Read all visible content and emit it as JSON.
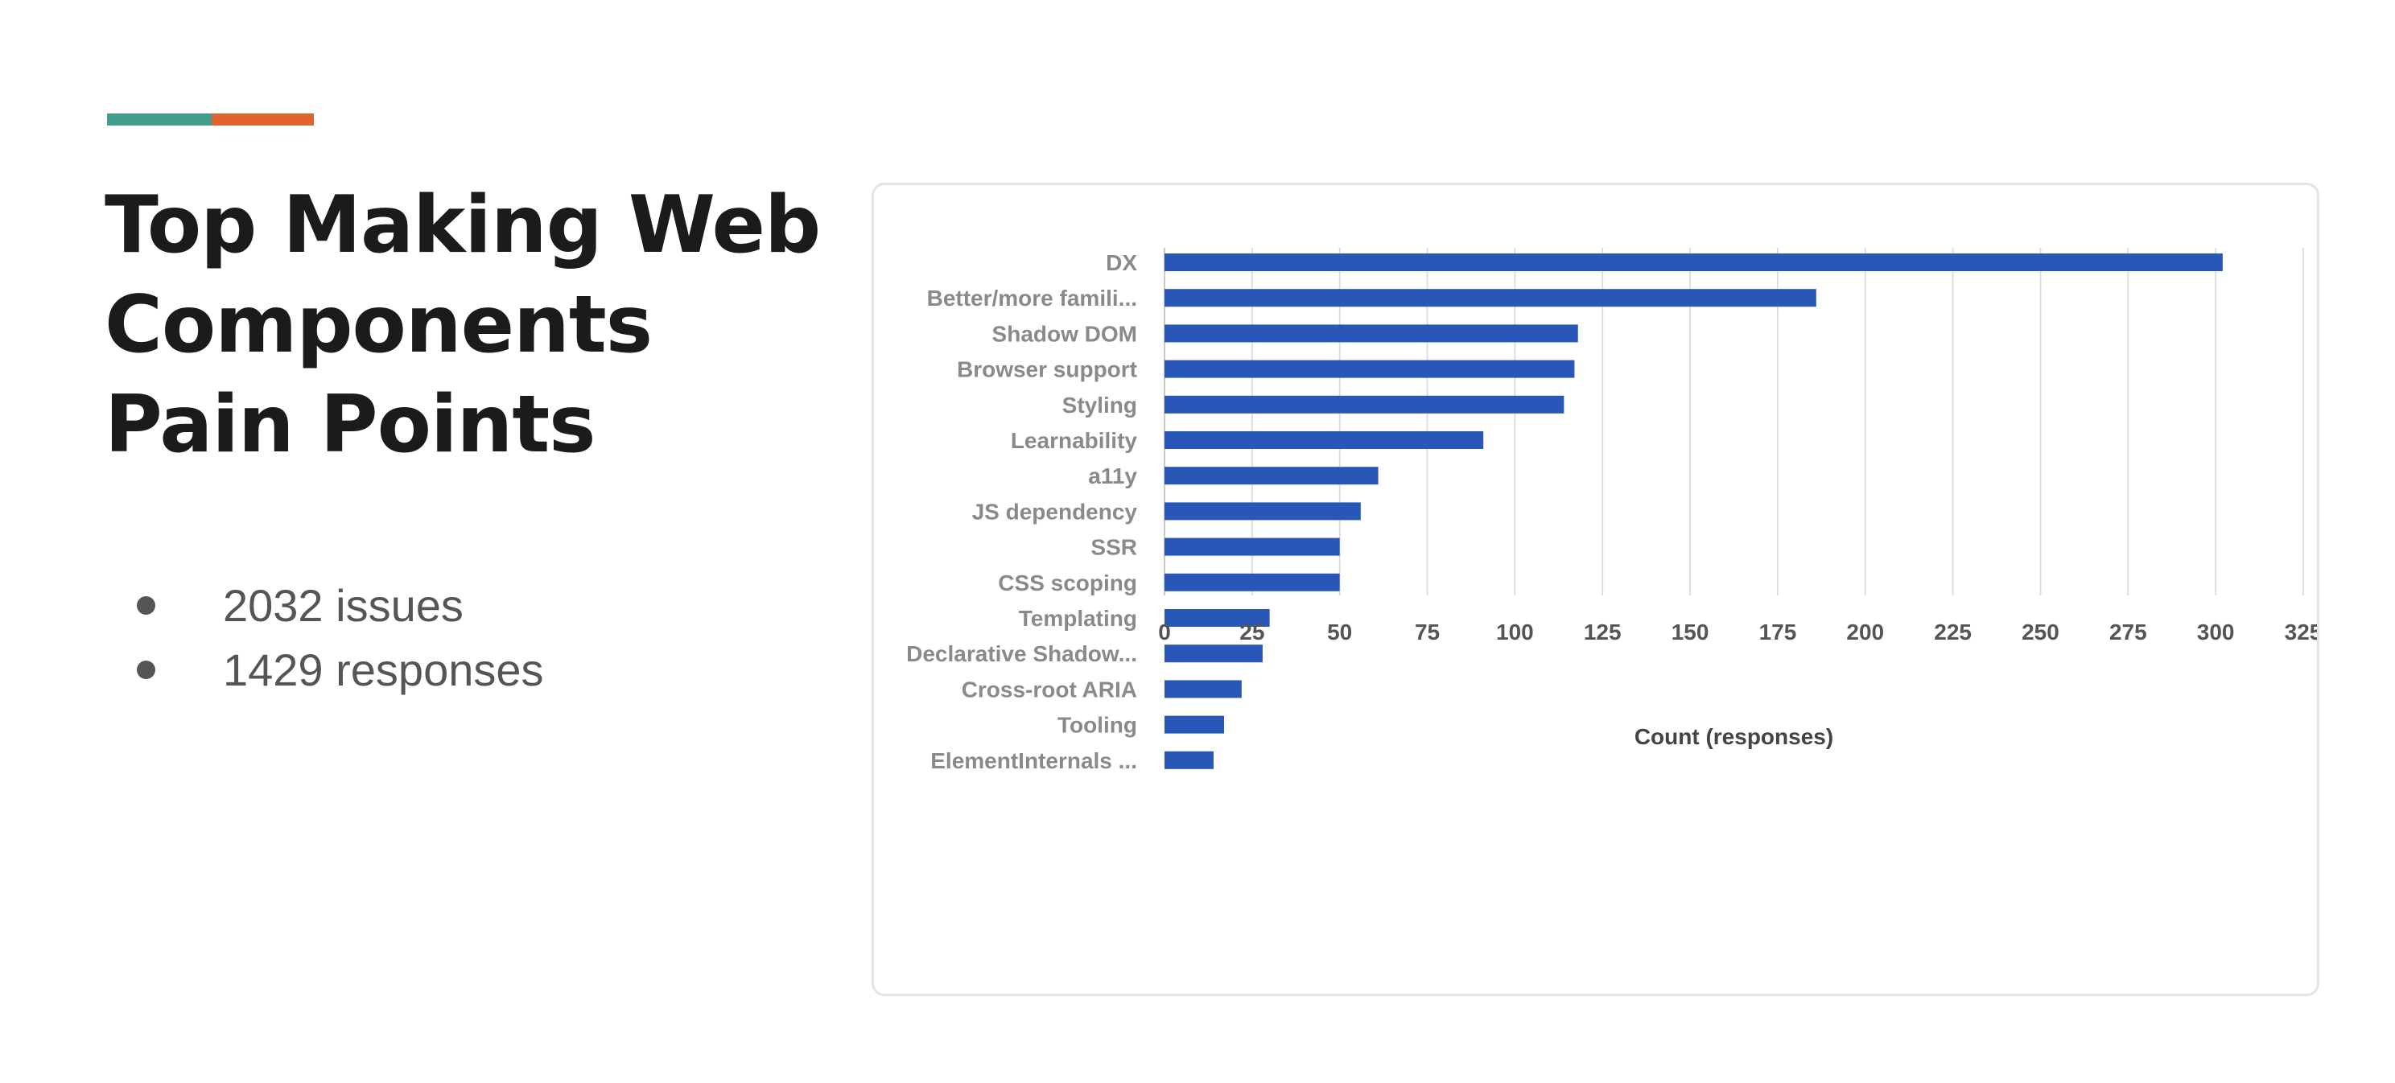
{
  "slide": {
    "title": "Top Making Web Components Pain Points",
    "accent_colors": [
      "#439d8d",
      "#e0632f"
    ],
    "bullets": [
      {
        "text": "2032 issues"
      },
      {
        "text": "1429 responses"
      }
    ]
  },
  "chart_data": {
    "type": "bar",
    "orientation": "horizontal",
    "title": "",
    "xlabel": "Count (responses)",
    "ylabel": "",
    "xlim": [
      0,
      325
    ],
    "x_ticks": [
      0,
      25,
      50,
      75,
      100,
      125,
      150,
      175,
      200,
      225,
      250,
      275,
      300,
      325
    ],
    "grid": true,
    "bar_color": "#2857b8",
    "categories": [
      "DX",
      "Better/more famili...",
      "Shadow DOM",
      "Browser support",
      "Styling",
      "Learnability",
      "a11y",
      "JS dependency",
      "SSR",
      "CSS scoping",
      "Templating",
      "Declarative Shadow...",
      "Cross-root ARIA",
      "Tooling",
      "ElementInternals ..."
    ],
    "values": [
      302,
      186,
      118,
      117,
      114,
      91,
      61,
      56,
      50,
      50,
      30,
      28,
      22,
      17,
      14
    ]
  }
}
